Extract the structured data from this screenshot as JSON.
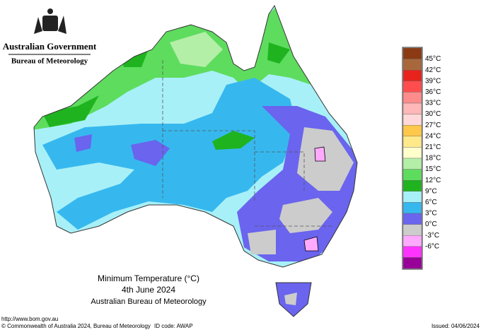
{
  "header": {
    "government": "Australian Government",
    "agency": "Bureau of Meteorology"
  },
  "legend": [
    {
      "color": "#8b3a14"
    },
    {
      "label": "45°C",
      "color": "#a8683c"
    },
    {
      "label": "42°C",
      "color": "#e8231e"
    },
    {
      "label": "39°C",
      "color": "#ff4d4d"
    },
    {
      "label": "36°C",
      "color": "#ff8c8c"
    },
    {
      "label": "33°C",
      "color": "#ffb7b7"
    },
    {
      "label": "30°C",
      "color": "#ffd9d9"
    },
    {
      "label": "27°C",
      "color": "#ffc84a"
    },
    {
      "label": "24°C",
      "color": "#ffe98a"
    },
    {
      "label": "21°C",
      "color": "#ffffcc"
    },
    {
      "label": "18°C",
      "color": "#b4efa8"
    },
    {
      "label": "15°C",
      "color": "#5edc5e"
    },
    {
      "label": "12°C",
      "color": "#1fb41f"
    },
    {
      "label": "9°C",
      "color": "#a8f0f8"
    },
    {
      "label": "6°C",
      "color": "#36b8ee"
    },
    {
      "label": "3°C",
      "color": "#6a64ee"
    },
    {
      "label": "0°C",
      "color": "#cccccc"
    },
    {
      "label": "-3°C",
      "color": "#ffaaff"
    },
    {
      "label": "-6°C",
      "color": "#ff33ff"
    },
    {
      "color": "#990099"
    }
  ],
  "map_title": {
    "line1": "Minimum Temperature (°C)",
    "line2": "4th June 2024",
    "line3": "Australian Bureau of Meteorology"
  },
  "footer": {
    "url": "http://www.bom.gov.au",
    "copyright": "© Commonwealth of Australia 2024, Bureau of Meteorology",
    "id_code": "ID code: AWAP",
    "issued": "Issued: 04/06/2024"
  }
}
